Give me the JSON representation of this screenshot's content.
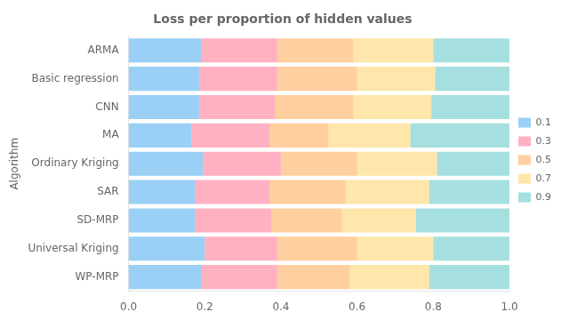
{
  "chart_data": {
    "type": "bar",
    "orientation": "horizontal",
    "stacked": true,
    "title": "Loss per proportion of hidden values",
    "ylabel": "Algorithm",
    "categories": [
      "WP-MRP",
      "Universal Kriging",
      "SD-MRP",
      "SAR",
      "Ordinary Kriging",
      "MA",
      "CNN",
      "Basic regression",
      "ARMA"
    ],
    "series": [
      {
        "name": "0.1",
        "values": [
          0.19,
          0.2,
          0.175,
          0.175,
          0.195,
          0.165,
          0.185,
          0.185,
          0.19
        ]
      },
      {
        "name": "0.3",
        "values": [
          0.2,
          0.19,
          0.2,
          0.195,
          0.205,
          0.205,
          0.2,
          0.205,
          0.2
        ]
      },
      {
        "name": "0.5",
        "values": [
          0.19,
          0.21,
          0.185,
          0.2,
          0.2,
          0.155,
          0.205,
          0.21,
          0.2
        ]
      },
      {
        "name": "0.7",
        "values": [
          0.21,
          0.2,
          0.195,
          0.22,
          0.21,
          0.215,
          0.205,
          0.205,
          0.21
        ]
      },
      {
        "name": "0.9",
        "values": [
          0.21,
          0.2,
          0.245,
          0.21,
          0.19,
          0.26,
          0.205,
          0.195,
          0.2
        ]
      }
    ],
    "xlim": [
      0.0,
      1.0
    ],
    "xticks": [
      {
        "value": 0.0,
        "label": "0.0"
      },
      0.2,
      0.4,
      0.6,
      0.8,
      {
        "value": 1.0,
        "label": "1.0"
      }
    ],
    "grid": false,
    "legend": "right"
  }
}
